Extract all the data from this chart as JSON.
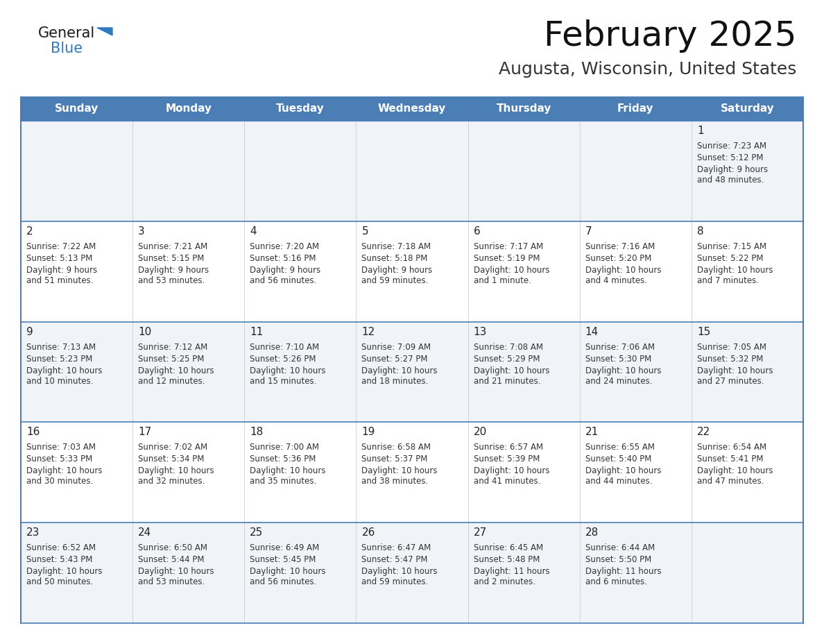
{
  "title": "February 2025",
  "subtitle": "Augusta, Wisconsin, United States",
  "days_of_week": [
    "Sunday",
    "Monday",
    "Tuesday",
    "Wednesday",
    "Thursday",
    "Friday",
    "Saturday"
  ],
  "header_bg": "#4a7eb5",
  "header_text": "#ffffff",
  "row_bg_odd": "#f0f4f8",
  "row_bg_even": "#ffffff",
  "cell_border_color": "#4a7eb5",
  "day_num_color": "#222222",
  "info_text_color": "#333333",
  "logo_general_color": "#1a1a1a",
  "logo_blue_color": "#2e7abf",
  "logo_triangle_color": "#2e7abf",
  "days_of_week_labels": [
    "Sunday",
    "Monday",
    "Tuesday",
    "Wednesday",
    "Thursday",
    "Friday",
    "Saturday"
  ],
  "calendar_data": [
    [
      null,
      null,
      null,
      null,
      null,
      null,
      {
        "day": "1",
        "sunrise": "7:23 AM",
        "sunset": "5:12 PM",
        "daylight": "9 hours\nand 48 minutes."
      }
    ],
    [
      {
        "day": "2",
        "sunrise": "7:22 AM",
        "sunset": "5:13 PM",
        "daylight": "9 hours\nand 51 minutes."
      },
      {
        "day": "3",
        "sunrise": "7:21 AM",
        "sunset": "5:15 PM",
        "daylight": "9 hours\nand 53 minutes."
      },
      {
        "day": "4",
        "sunrise": "7:20 AM",
        "sunset": "5:16 PM",
        "daylight": "9 hours\nand 56 minutes."
      },
      {
        "day": "5",
        "sunrise": "7:18 AM",
        "sunset": "5:18 PM",
        "daylight": "9 hours\nand 59 minutes."
      },
      {
        "day": "6",
        "sunrise": "7:17 AM",
        "sunset": "5:19 PM",
        "daylight": "10 hours\nand 1 minute."
      },
      {
        "day": "7",
        "sunrise": "7:16 AM",
        "sunset": "5:20 PM",
        "daylight": "10 hours\nand 4 minutes."
      },
      {
        "day": "8",
        "sunrise": "7:15 AM",
        "sunset": "5:22 PM",
        "daylight": "10 hours\nand 7 minutes."
      }
    ],
    [
      {
        "day": "9",
        "sunrise": "7:13 AM",
        "sunset": "5:23 PM",
        "daylight": "10 hours\nand 10 minutes."
      },
      {
        "day": "10",
        "sunrise": "7:12 AM",
        "sunset": "5:25 PM",
        "daylight": "10 hours\nand 12 minutes."
      },
      {
        "day": "11",
        "sunrise": "7:10 AM",
        "sunset": "5:26 PM",
        "daylight": "10 hours\nand 15 minutes."
      },
      {
        "day": "12",
        "sunrise": "7:09 AM",
        "sunset": "5:27 PM",
        "daylight": "10 hours\nand 18 minutes."
      },
      {
        "day": "13",
        "sunrise": "7:08 AM",
        "sunset": "5:29 PM",
        "daylight": "10 hours\nand 21 minutes."
      },
      {
        "day": "14",
        "sunrise": "7:06 AM",
        "sunset": "5:30 PM",
        "daylight": "10 hours\nand 24 minutes."
      },
      {
        "day": "15",
        "sunrise": "7:05 AM",
        "sunset": "5:32 PM",
        "daylight": "10 hours\nand 27 minutes."
      }
    ],
    [
      {
        "day": "16",
        "sunrise": "7:03 AM",
        "sunset": "5:33 PM",
        "daylight": "10 hours\nand 30 minutes."
      },
      {
        "day": "17",
        "sunrise": "7:02 AM",
        "sunset": "5:34 PM",
        "daylight": "10 hours\nand 32 minutes."
      },
      {
        "day": "18",
        "sunrise": "7:00 AM",
        "sunset": "5:36 PM",
        "daylight": "10 hours\nand 35 minutes."
      },
      {
        "day": "19",
        "sunrise": "6:58 AM",
        "sunset": "5:37 PM",
        "daylight": "10 hours\nand 38 minutes."
      },
      {
        "day": "20",
        "sunrise": "6:57 AM",
        "sunset": "5:39 PM",
        "daylight": "10 hours\nand 41 minutes."
      },
      {
        "day": "21",
        "sunrise": "6:55 AM",
        "sunset": "5:40 PM",
        "daylight": "10 hours\nand 44 minutes."
      },
      {
        "day": "22",
        "sunrise": "6:54 AM",
        "sunset": "5:41 PM",
        "daylight": "10 hours\nand 47 minutes."
      }
    ],
    [
      {
        "day": "23",
        "sunrise": "6:52 AM",
        "sunset": "5:43 PM",
        "daylight": "10 hours\nand 50 minutes."
      },
      {
        "day": "24",
        "sunrise": "6:50 AM",
        "sunset": "5:44 PM",
        "daylight": "10 hours\nand 53 minutes."
      },
      {
        "day": "25",
        "sunrise": "6:49 AM",
        "sunset": "5:45 PM",
        "daylight": "10 hours\nand 56 minutes."
      },
      {
        "day": "26",
        "sunrise": "6:47 AM",
        "sunset": "5:47 PM",
        "daylight": "10 hours\nand 59 minutes."
      },
      {
        "day": "27",
        "sunrise": "6:45 AM",
        "sunset": "5:48 PM",
        "daylight": "11 hours\nand 2 minutes."
      },
      {
        "day": "28",
        "sunrise": "6:44 AM",
        "sunset": "5:50 PM",
        "daylight": "11 hours\nand 6 minutes."
      },
      null
    ]
  ]
}
